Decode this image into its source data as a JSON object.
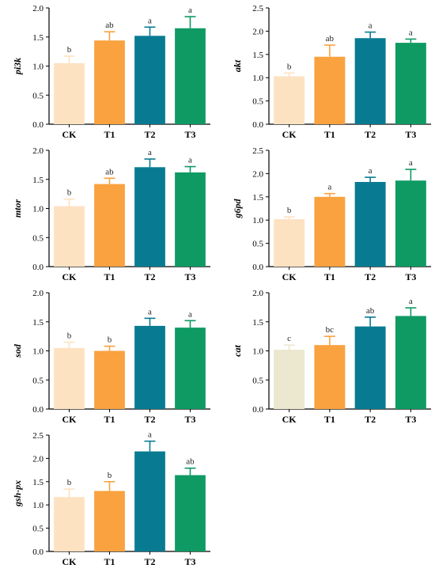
{
  "colors": {
    "CK": "#fde2c2",
    "CK_alt": "#ece7cf",
    "T1": "#f9a23f",
    "T2": "#087b92",
    "T3": "#0f9a63"
  },
  "chart_data": [
    {
      "type": "bar",
      "id": "pi3k",
      "ylabel": "pi3k",
      "categories": [
        "CK",
        "T1",
        "T2",
        "T3"
      ],
      "values": [
        1.05,
        1.44,
        1.52,
        1.65
      ],
      "errors": [
        0.12,
        0.15,
        0.15,
        0.2
      ],
      "labels": [
        "b",
        "ab",
        "a",
        "a"
      ],
      "ylim": [
        0,
        2.0
      ],
      "ticks": [
        "0.0",
        "0.5",
        "1.0",
        "1.5",
        "2.0"
      ],
      "tick_values": [
        0,
        0.5,
        1.0,
        1.5,
        2.0
      ],
      "ck_color": "CK"
    },
    {
      "type": "bar",
      "id": "akt",
      "ylabel": "akt",
      "categories": [
        "CK",
        "T1",
        "T2",
        "T3"
      ],
      "values": [
        1.03,
        1.45,
        1.85,
        1.75
      ],
      "errors": [
        0.07,
        0.25,
        0.13,
        0.08
      ],
      "labels": [
        "b",
        "ab",
        "a",
        "a"
      ],
      "ylim": [
        0,
        2.5
      ],
      "ticks": [
        "0.0",
        "0.5",
        "1.0",
        "1.5",
        "2.0",
        "2.5"
      ],
      "tick_values": [
        0,
        0.5,
        1.0,
        1.5,
        2.0,
        2.5
      ],
      "ck_color": "CK"
    },
    {
      "type": "bar",
      "id": "mtor",
      "ylabel": "mtor",
      "categories": [
        "CK",
        "T1",
        "T2",
        "T3"
      ],
      "values": [
        1.04,
        1.42,
        1.71,
        1.62
      ],
      "errors": [
        0.12,
        0.1,
        0.14,
        0.1
      ],
      "labels": [
        "b",
        "ab",
        "a",
        "a"
      ],
      "ylim": [
        0,
        2.0
      ],
      "ticks": [
        "0.0",
        "0.5",
        "1.0",
        "1.5",
        "2.0"
      ],
      "tick_values": [
        0,
        0.5,
        1.0,
        1.5,
        2.0
      ],
      "ck_color": "CK"
    },
    {
      "type": "bar",
      "id": "g6pd",
      "ylabel": "g6pd",
      "categories": [
        "CK",
        "T1",
        "T2",
        "T3"
      ],
      "values": [
        1.02,
        1.5,
        1.82,
        1.85
      ],
      "errors": [
        0.05,
        0.07,
        0.1,
        0.24
      ],
      "labels": [
        "b",
        "a",
        "a",
        "a"
      ],
      "ylim": [
        0,
        2.5
      ],
      "ticks": [
        "0.0",
        "0.5",
        "1.0",
        "1.5",
        "2.0",
        "2.5"
      ],
      "tick_values": [
        0,
        0.5,
        1.0,
        1.5,
        2.0,
        2.5
      ],
      "ck_color": "CK"
    },
    {
      "type": "bar",
      "id": "sod",
      "ylabel": "sod",
      "categories": [
        "CK",
        "T1",
        "T2",
        "T3"
      ],
      "values": [
        1.05,
        1.0,
        1.43,
        1.4
      ],
      "errors": [
        0.1,
        0.08,
        0.13,
        0.12
      ],
      "labels": [
        "b",
        "b",
        "a",
        "a"
      ],
      "ylim": [
        0,
        2.0
      ],
      "ticks": [
        "0.0",
        "0.5",
        "1.0",
        "1.5",
        "2.0"
      ],
      "tick_values": [
        0,
        0.5,
        1.0,
        1.5,
        2.0
      ],
      "ck_color": "CK"
    },
    {
      "type": "bar",
      "id": "cat",
      "ylabel": "cat",
      "categories": [
        "CK",
        "T1",
        "T2",
        "T3"
      ],
      "values": [
        1.02,
        1.1,
        1.42,
        1.6
      ],
      "errors": [
        0.08,
        0.15,
        0.16,
        0.14
      ],
      "labels": [
        "c",
        "bc",
        "ab",
        "a"
      ],
      "ylim": [
        0,
        2.0
      ],
      "ticks": [
        "0.0",
        "0.5",
        "1.0",
        "1.5",
        "2.0"
      ],
      "tick_values": [
        0,
        0.5,
        1.0,
        1.5,
        2.0
      ],
      "ck_color": "CK_alt"
    },
    {
      "type": "bar",
      "id": "gsh-px",
      "ylabel": "gsh-px",
      "categories": [
        "CK",
        "T1",
        "T2",
        "T3"
      ],
      "values": [
        1.17,
        1.3,
        2.15,
        1.64
      ],
      "errors": [
        0.17,
        0.2,
        0.22,
        0.15
      ],
      "labels": [
        "b",
        "b",
        "a",
        "ab"
      ],
      "ylim": [
        0,
        2.5
      ],
      "ticks": [
        "0.0",
        "0.5",
        "1.0",
        "1.5",
        "2.0",
        "2.5"
      ],
      "tick_values": [
        0,
        0.5,
        1.0,
        1.5,
        2.0,
        2.5
      ],
      "ck_color": "CK"
    }
  ]
}
